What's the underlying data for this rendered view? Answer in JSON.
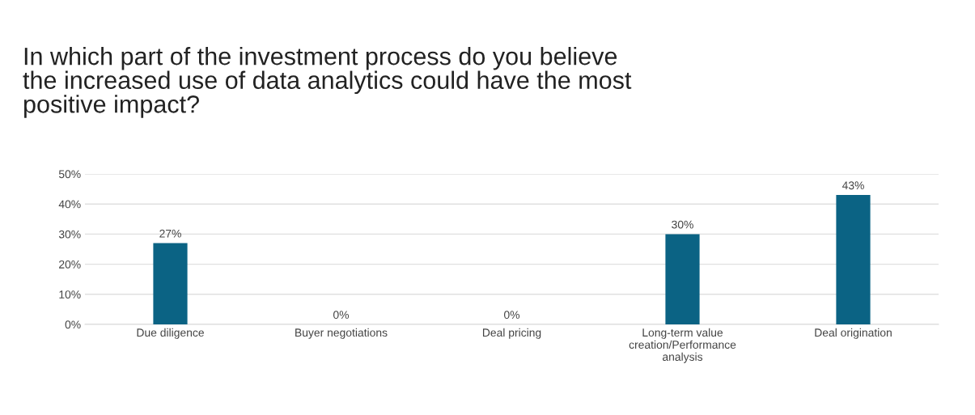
{
  "chart_data": {
    "type": "bar",
    "title": "In which part of the investment process do you believe\nthe increased use of data analytics could have the most\npositive impact?",
    "categories": [
      "Due diligence",
      "Buyer negotiations",
      "Deal pricing",
      "Long-term value\ncreation/Performance\nanalysis",
      "Deal origination"
    ],
    "values": [
      27,
      0,
      0,
      30,
      43
    ],
    "value_labels": [
      "27%",
      "0%",
      "0%",
      "30%",
      "43%"
    ],
    "color": "#0b6384",
    "ylim": [
      0,
      50
    ],
    "yticks": [
      {
        "value": 0,
        "label": "0%"
      },
      {
        "value": 10,
        "label": "10%"
      },
      {
        "value": 20,
        "label": "20%"
      },
      {
        "value": 30,
        "label": "30%"
      },
      {
        "value": 40,
        "label": "40%"
      },
      {
        "value": 50,
        "label": "50%"
      }
    ],
    "grid": "y",
    "legend": false
  }
}
